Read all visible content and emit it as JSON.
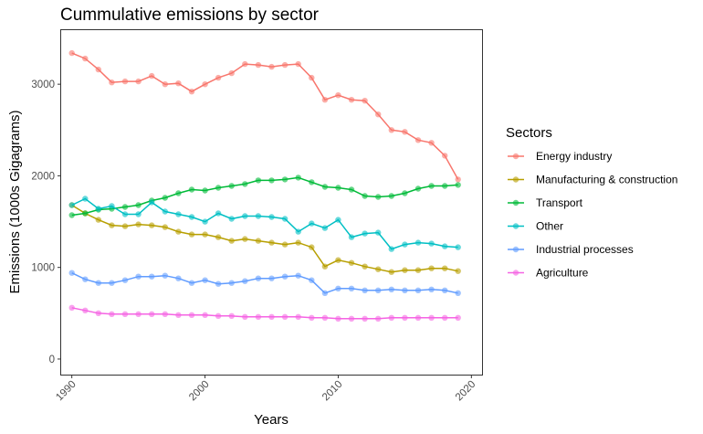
{
  "chart_data": {
    "type": "line",
    "title": "Cummulative emissions by sector",
    "xlabel": "Years",
    "ylabel": "Emissions (1000s Gigagrams)",
    "xlim": [
      1989.2,
      2020.8
    ],
    "ylim": [
      -170,
      3590
    ],
    "x_ticks": [
      1990,
      2000,
      2010,
      2020
    ],
    "y_ticks": [
      0,
      1000,
      2000,
      3000
    ],
    "grid": false,
    "legend": {
      "title": "Sectors",
      "position": "right"
    },
    "x": [
      1990,
      1991,
      1992,
      1993,
      1994,
      1995,
      1996,
      1997,
      1998,
      1999,
      2000,
      2001,
      2002,
      2003,
      2004,
      2005,
      2006,
      2007,
      2008,
      2009,
      2010,
      2011,
      2012,
      2013,
      2014,
      2015,
      2016,
      2017,
      2018,
      2019
    ],
    "series": [
      {
        "name": "Energy industry",
        "color": "#F8766D",
        "values": [
          3340,
          3280,
          3160,
          3020,
          3030,
          3030,
          3090,
          3000,
          3010,
          2920,
          3000,
          3070,
          3120,
          3220,
          3210,
          3190,
          3210,
          3220,
          3070,
          2830,
          2880,
          2830,
          2820,
          2670,
          2500,
          2480,
          2390,
          2360,
          2220,
          1960
        ]
      },
      {
        "name": "Manufacturing & construction",
        "color": "#B79F00",
        "values": [
          1680,
          1590,
          1520,
          1460,
          1450,
          1470,
          1460,
          1440,
          1390,
          1360,
          1360,
          1330,
          1290,
          1310,
          1290,
          1270,
          1250,
          1270,
          1220,
          1010,
          1080,
          1050,
          1010,
          980,
          950,
          970,
          970,
          990,
          990,
          960
        ]
      },
      {
        "name": "Transport",
        "color": "#00BA38",
        "values": [
          1570,
          1590,
          1630,
          1640,
          1660,
          1680,
          1730,
          1760,
          1810,
          1850,
          1840,
          1870,
          1890,
          1910,
          1950,
          1950,
          1960,
          1980,
          1930,
          1880,
          1870,
          1850,
          1780,
          1770,
          1780,
          1810,
          1860,
          1890,
          1890,
          1900
        ]
      },
      {
        "name": "Other",
        "color": "#00BFC4",
        "values": [
          1680,
          1750,
          1640,
          1670,
          1580,
          1580,
          1710,
          1610,
          1580,
          1550,
          1500,
          1590,
          1530,
          1560,
          1560,
          1550,
          1530,
          1390,
          1480,
          1430,
          1520,
          1330,
          1370,
          1380,
          1200,
          1250,
          1270,
          1260,
          1230,
          1220
        ]
      },
      {
        "name": "Industrial processes",
        "color": "#619CFF",
        "values": [
          940,
          870,
          830,
          830,
          860,
          900,
          900,
          910,
          880,
          830,
          860,
          820,
          830,
          850,
          880,
          880,
          900,
          910,
          860,
          720,
          770,
          770,
          750,
          750,
          760,
          750,
          750,
          760,
          750,
          720
        ]
      },
      {
        "name": "Agriculture",
        "color": "#F564E3",
        "values": [
          560,
          530,
          500,
          490,
          490,
          490,
          490,
          490,
          480,
          480,
          480,
          470,
          470,
          460,
          460,
          460,
          460,
          460,
          450,
          450,
          440,
          440,
          440,
          440,
          450,
          450,
          450,
          450,
          450,
          450
        ]
      }
    ]
  }
}
